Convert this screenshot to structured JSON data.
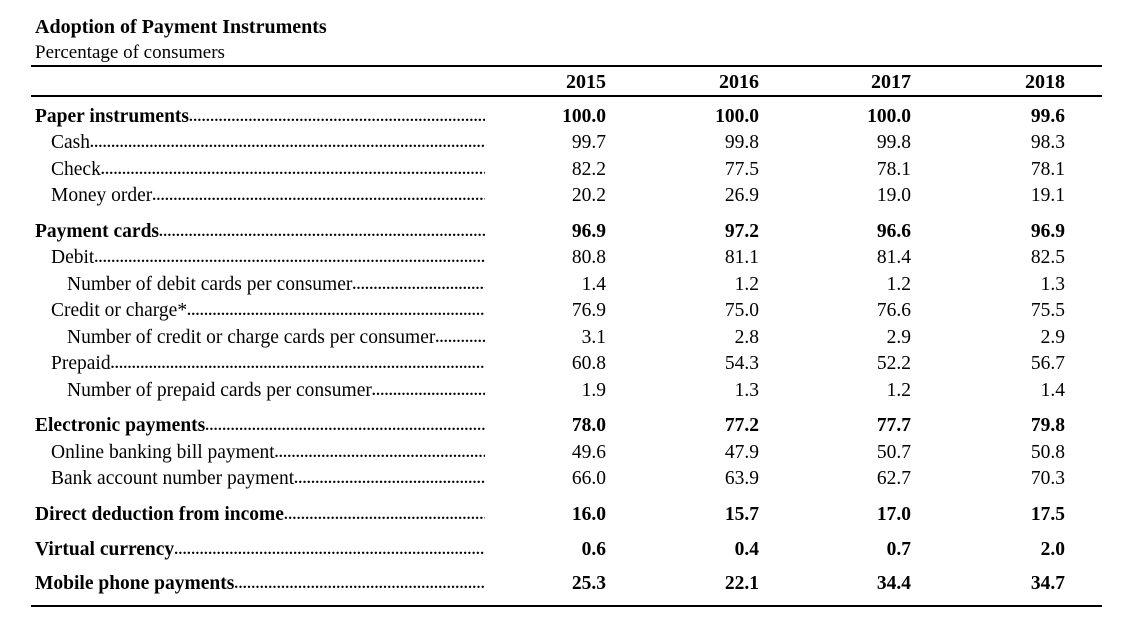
{
  "title": "Adoption of Payment Instruments",
  "subtitle": "Percentage of consumers",
  "years": [
    "2015",
    "2016",
    "2017",
    "2018"
  ],
  "groups": [
    {
      "rows": [
        {
          "label": "Paper instruments",
          "level": 0,
          "values": [
            "100.0",
            "100.0",
            "100.0",
            "99.6"
          ]
        },
        {
          "label": "Cash",
          "level": 1,
          "values": [
            "99.7",
            "99.8",
            "99.8",
            "98.3"
          ]
        },
        {
          "label": "Check",
          "level": 1,
          "values": [
            "82.2",
            "77.5",
            "78.1",
            "78.1"
          ]
        },
        {
          "label": "Money order",
          "level": 1,
          "values": [
            "20.2",
            "26.9",
            "19.0",
            "19.1"
          ]
        }
      ]
    },
    {
      "rows": [
        {
          "label": "Payment cards",
          "level": 0,
          "values": [
            "96.9",
            "97.2",
            "96.6",
            "96.9"
          ]
        },
        {
          "label": "Debit",
          "level": 1,
          "values": [
            "80.8",
            "81.1",
            "81.4",
            "82.5"
          ]
        },
        {
          "label": "Number of debit cards per consumer",
          "level": 2,
          "values": [
            "1.4",
            "1.2",
            "1.2",
            "1.3"
          ]
        },
        {
          "label": "Credit or charge*",
          "level": 1,
          "values": [
            "76.9",
            "75.0",
            "76.6",
            "75.5"
          ]
        },
        {
          "label": "Number of credit or charge cards per consumer",
          "level": 2,
          "values": [
            "3.1",
            "2.8",
            "2.9",
            "2.9"
          ]
        },
        {
          "label": "Prepaid",
          "level": 1,
          "values": [
            "60.8",
            "54.3",
            "52.2",
            "56.7"
          ]
        },
        {
          "label": "Number of prepaid cards per consumer",
          "level": 2,
          "values": [
            "1.9",
            "1.3",
            "1.2",
            "1.4"
          ]
        }
      ]
    },
    {
      "rows": [
        {
          "label": "Electronic payments",
          "level": 0,
          "values": [
            "78.0",
            "77.2",
            "77.7",
            "79.8"
          ]
        },
        {
          "label": "Online banking bill payment",
          "level": 1,
          "values": [
            "49.6",
            "47.9",
            "50.7",
            "50.8"
          ]
        },
        {
          "label": "Bank account number payment",
          "level": 1,
          "values": [
            "66.0",
            "63.9",
            "62.7",
            "70.3"
          ]
        }
      ]
    },
    {
      "rows": [
        {
          "label": "Direct deduction from income",
          "level": 0,
          "values": [
            "16.0",
            "15.7",
            "17.0",
            "17.5"
          ]
        }
      ]
    },
    {
      "rows": [
        {
          "label": "Virtual currency",
          "level": 0,
          "values": [
            "0.6",
            "0.4",
            "0.7",
            "2.0"
          ]
        }
      ]
    },
    {
      "rows": [
        {
          "label": "Mobile phone payments",
          "level": 0,
          "values": [
            "25.3",
            "22.1",
            "34.4",
            "34.7"
          ]
        }
      ]
    }
  ]
}
